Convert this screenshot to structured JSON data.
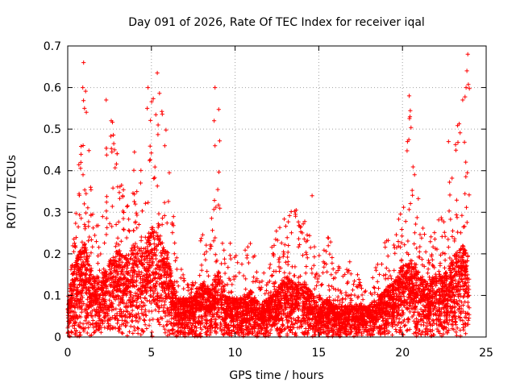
{
  "chart_data": {
    "type": "scatter",
    "title": "Day 091 of 2026, Rate Of TEC Index for receiver iqal",
    "xlabel": "GPS time / hours",
    "ylabel": "ROTI / TECUs",
    "xlim": [
      0,
      25
    ],
    "ylim": [
      0,
      0.7
    ],
    "xticks": [
      0,
      5,
      10,
      15,
      20,
      25
    ],
    "yticks": [
      0,
      0.1,
      0.2,
      0.3,
      0.4,
      0.5,
      0.6,
      0.7
    ],
    "xtick_labels": [
      "0",
      "5",
      "10",
      "15",
      "20",
      "25"
    ],
    "ytick_labels": [
      "0",
      "0.1",
      "0.2",
      "0.3",
      "0.4",
      "0.5",
      "0.6",
      "0.7"
    ],
    "grid": true,
    "marker": "+",
    "color": "#ff0000",
    "series": [
      {
        "name": "ROTI",
        "envelope": {
          "x": [
            0.0,
            0.5,
            1.0,
            1.5,
            2.0,
            2.5,
            3.0,
            3.5,
            4.0,
            4.5,
            5.0,
            5.5,
            6.0,
            6.5,
            7.0,
            7.5,
            8.0,
            8.5,
            9.0,
            9.5,
            10.0,
            10.5,
            11.0,
            11.5,
            12.0,
            12.5,
            13.0,
            13.5,
            14.0,
            14.5,
            15.0,
            15.5,
            16.0,
            16.5,
            17.0,
            17.5,
            18.0,
            18.5,
            19.0,
            19.5,
            20.0,
            20.5,
            21.0,
            21.5,
            22.0,
            22.5,
            23.0,
            23.5,
            24.0
          ],
          "y_max": [
            0.1,
            0.3,
            0.66,
            0.3,
            0.28,
            0.57,
            0.45,
            0.32,
            0.45,
            0.4,
            0.6,
            0.64,
            0.46,
            0.2,
            0.15,
            0.13,
            0.25,
            0.26,
            0.6,
            0.23,
            0.22,
            0.2,
            0.27,
            0.15,
            0.17,
            0.3,
            0.34,
            0.32,
            0.34,
            0.25,
            0.2,
            0.26,
            0.21,
            0.16,
            0.19,
            0.13,
            0.11,
            0.22,
            0.23,
            0.27,
            0.32,
            0.58,
            0.31,
            0.22,
            0.29,
            0.3,
            0.42,
            0.62,
            0.68
          ],
          "y_typ": [
            0.05,
            0.1,
            0.12,
            0.08,
            0.07,
            0.1,
            0.11,
            0.1,
            0.12,
            0.11,
            0.14,
            0.13,
            0.1,
            0.05,
            0.05,
            0.05,
            0.07,
            0.06,
            0.09,
            0.05,
            0.05,
            0.05,
            0.06,
            0.04,
            0.05,
            0.06,
            0.08,
            0.07,
            0.07,
            0.06,
            0.04,
            0.05,
            0.04,
            0.04,
            0.04,
            0.04,
            0.04,
            0.05,
            0.06,
            0.07,
            0.09,
            0.1,
            0.08,
            0.07,
            0.08,
            0.08,
            0.1,
            0.12,
            0.1
          ]
        },
        "notable_points": [
          {
            "x": 0.95,
            "y": 0.66
          },
          {
            "x": 0.9,
            "y": 0.6
          },
          {
            "x": 1.0,
            "y": 0.55
          },
          {
            "x": 2.3,
            "y": 0.57
          },
          {
            "x": 2.6,
            "y": 0.52
          },
          {
            "x": 2.8,
            "y": 0.45
          },
          {
            "x": 4.8,
            "y": 0.6
          },
          {
            "x": 4.75,
            "y": 0.55
          },
          {
            "x": 5.35,
            "y": 0.635
          },
          {
            "x": 5.4,
            "y": 0.51
          },
          {
            "x": 5.8,
            "y": 0.46
          },
          {
            "x": 8.8,
            "y": 0.6
          },
          {
            "x": 8.75,
            "y": 0.52
          },
          {
            "x": 8.8,
            "y": 0.46
          },
          {
            "x": 14.6,
            "y": 0.34
          },
          {
            "x": 20.4,
            "y": 0.58
          },
          {
            "x": 20.45,
            "y": 0.53
          },
          {
            "x": 20.3,
            "y": 0.47
          },
          {
            "x": 22.75,
            "y": 0.47
          },
          {
            "x": 23.9,
            "y": 0.68
          },
          {
            "x": 23.85,
            "y": 0.64
          },
          {
            "x": 23.8,
            "y": 0.6
          },
          {
            "x": 23.6,
            "y": 0.57
          }
        ]
      }
    ]
  }
}
